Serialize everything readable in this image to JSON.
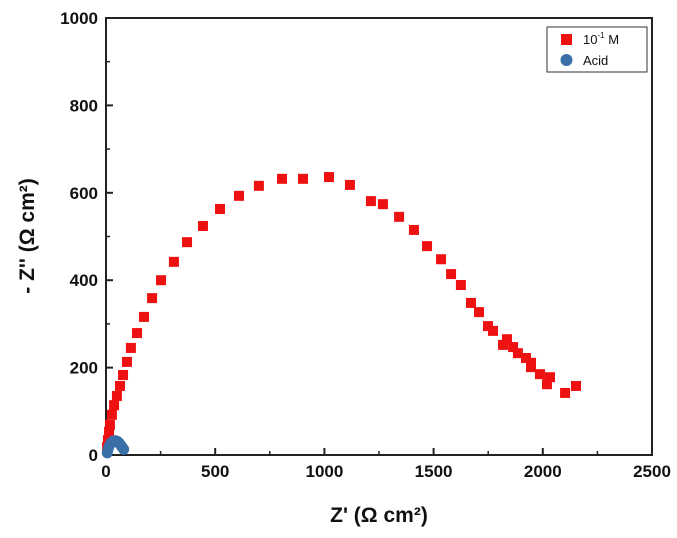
{
  "chart_data": {
    "type": "scatter",
    "title": "",
    "xlabel": "Z' (Ω cm²)",
    "ylabel": "- Z'' (Ω cm²)",
    "xlim": [
      0,
      2500
    ],
    "ylim": [
      0,
      1000
    ],
    "xticks": [
      "0",
      "500",
      "1000",
      "1500",
      "2000",
      "2500"
    ],
    "yticks": [
      "0",
      "200",
      "400",
      "600",
      "800",
      "1000"
    ],
    "legend_position": "top-right",
    "grid": false,
    "series": [
      {
        "name": "10⁻¹ M",
        "legend_base": "10",
        "legend_exp": "-1",
        "legend_unit": " M",
        "marker": "square",
        "color": "#ee1111",
        "points": [
          [
            5,
            18
          ],
          [
            9,
            34
          ],
          [
            14,
            53
          ],
          [
            18,
            69
          ],
          [
            27,
            92
          ],
          [
            37,
            114
          ],
          [
            50,
            135
          ],
          [
            64,
            158
          ],
          [
            78,
            183
          ],
          [
            96,
            213
          ],
          [
            114,
            245
          ],
          [
            142,
            279
          ],
          [
            174,
            316
          ],
          [
            211,
            359
          ],
          [
            252,
            400
          ],
          [
            311,
            442
          ],
          [
            371,
            487
          ],
          [
            444,
            524
          ],
          [
            522,
            563
          ],
          [
            609,
            593
          ],
          [
            700,
            616
          ],
          [
            806,
            632
          ],
          [
            902,
            632
          ],
          [
            1021,
            636
          ],
          [
            1117,
            618
          ],
          [
            1213,
            581
          ],
          [
            1268,
            574
          ],
          [
            1342,
            545
          ],
          [
            1410,
            515
          ],
          [
            1470,
            478
          ],
          [
            1534,
            448
          ],
          [
            1580,
            414
          ],
          [
            1625,
            389
          ],
          [
            1671,
            348
          ],
          [
            1708,
            327
          ],
          [
            1749,
            295
          ],
          [
            1772,
            284
          ],
          [
            1818,
            252
          ],
          [
            1836,
            265
          ],
          [
            1864,
            247
          ],
          [
            1886,
            233
          ],
          [
            1923,
            222
          ],
          [
            1946,
            211
          ],
          [
            1946,
            201
          ],
          [
            1987,
            185
          ],
          [
            2019,
            162
          ],
          [
            2033,
            178
          ],
          [
            2102,
            142
          ],
          [
            2152,
            158
          ]
        ]
      },
      {
        "name": "Acid",
        "marker": "circle",
        "color": "#3a6fa8",
        "points": [
          [
            6,
            5
          ],
          [
            10,
            14
          ],
          [
            16,
            22
          ],
          [
            24,
            28
          ],
          [
            33,
            32
          ],
          [
            43,
            33
          ],
          [
            53,
            31
          ],
          [
            61,
            27
          ],
          [
            68,
            22
          ],
          [
            75,
            17
          ],
          [
            81,
            13
          ]
        ]
      }
    ]
  }
}
